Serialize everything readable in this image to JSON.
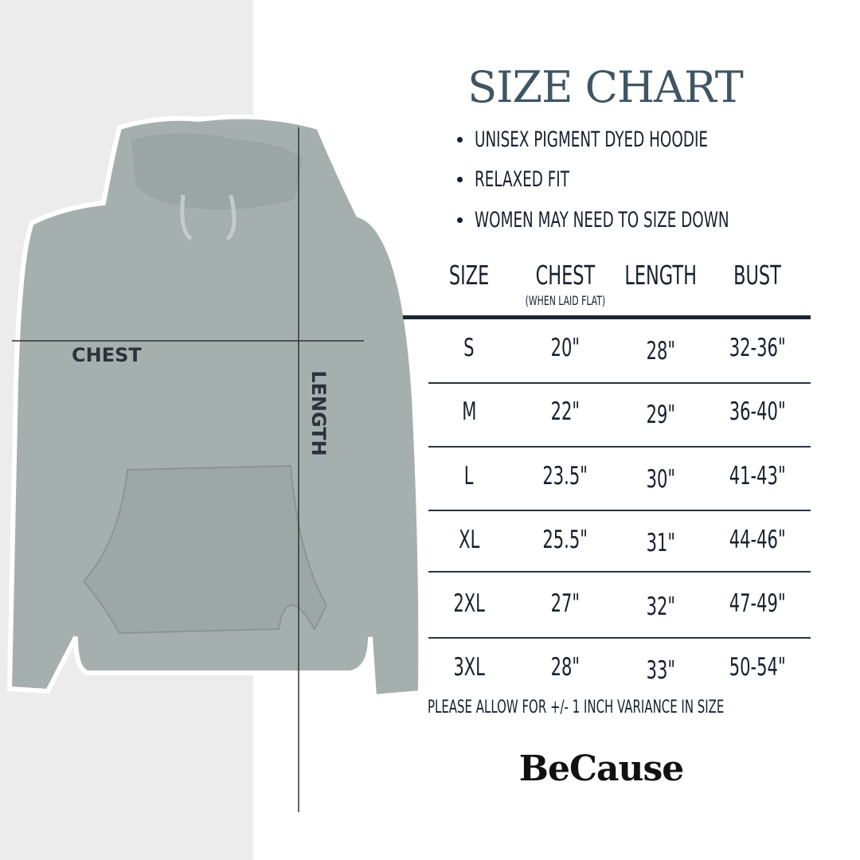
{
  "title": "SIZE CHART",
  "bullets": [
    "UNISEX PIGMENT DYED HOODIE",
    "RELAXED FIT",
    "WOMEN MAY NEED TO SIZE DOWN"
  ],
  "table": {
    "headers": [
      "SIZE",
      "CHEST",
      "LENGTH",
      "BUST"
    ],
    "chest_note": "(WHEN LAID FLAT)",
    "rows": [
      [
        "S",
        "20\"",
        "28\"",
        "32-36\""
      ],
      [
        "M",
        "22\"",
        "29\"",
        "36-40\""
      ],
      [
        "L",
        "23.5\"",
        "30\"",
        "41-43\""
      ],
      [
        "XL",
        "25.5\"",
        "31\"",
        "44-46\""
      ],
      [
        "2XL",
        "27\"",
        "32\"",
        "47-49\""
      ],
      [
        "3XL",
        "28\"",
        "33\"",
        "50-54\""
      ]
    ]
  },
  "note": "PLEASE ALLOW FOR +/- 1 INCH VARIANCE IN SIZE",
  "brand": "BeCause",
  "image": {
    "chest_label": "CHEST",
    "length_label": "LENGTH",
    "hoodie_color": "#a5b0ae"
  },
  "colors": {
    "title": "#3f5563",
    "text": "#17202e"
  }
}
